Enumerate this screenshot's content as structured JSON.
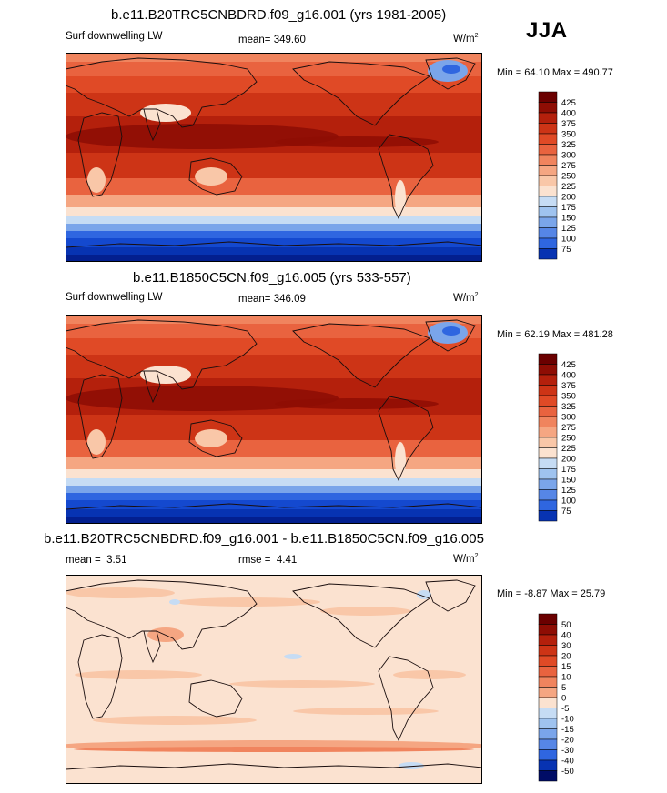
{
  "season": "JJA",
  "colors": {
    "warm": [
      "#fbe2d0",
      "#f9c7a8",
      "#f5a682",
      "#f0845e",
      "#e9633f",
      "#e04a26",
      "#cd3416",
      "#b4200c",
      "#8e0d04",
      "#6b0000"
    ],
    "cool": [
      "#c6dcf4",
      "#9fc3ef",
      "#7aa5ea",
      "#5686e6",
      "#2f66e0",
      "#1449cf",
      "#0733b2",
      "#031f8f",
      "#000c66"
    ],
    "land": "#1a0e0e"
  },
  "chart_data": [
    {
      "type": "heatmap",
      "title": "b.e11.B20TRC5CNBDRD.f09_g16.001 (yrs 1981-2005)",
      "variable": "Surf downwelling LW",
      "stat_label": "mean=",
      "stat_value": "349.60",
      "units": "W/m",
      "units_exp": "2",
      "min_label": "Min =",
      "min": "64.10",
      "max_label": "Max =",
      "max": "490.77",
      "levels": [
        "425",
        "400",
        "375",
        "350",
        "325",
        "300",
        "275",
        "250",
        "225",
        "200",
        "175",
        "150",
        "125",
        "100",
        "75"
      ],
      "level_values": [
        425,
        400,
        375,
        350,
        325,
        300,
        275,
        250,
        225,
        200,
        175,
        150,
        125,
        100,
        75
      ],
      "range": [
        64.1,
        490.77
      ],
      "colorbar_colors": [
        "#6b0000",
        "#8e0d04",
        "#b4200c",
        "#cd3416",
        "#e04a26",
        "#e9633f",
        "#f0845e",
        "#f5a682",
        "#f9c7a8",
        "#fbe2d0",
        "#c6dcf4",
        "#9fc3ef",
        "#7aa5ea",
        "#5686e6",
        "#2f66e0",
        "#0733b2"
      ],
      "field": "absolute"
    },
    {
      "type": "heatmap",
      "title": "b.e11.B1850C5CN.f09_g16.005 (yrs 533-557)",
      "variable": "Surf downwelling LW",
      "stat_label": "mean=",
      "stat_value": "346.09",
      "units": "W/m",
      "units_exp": "2",
      "min_label": "Min =",
      "min": "62.19",
      "max_label": "Max =",
      "max": "481.28",
      "levels": [
        "425",
        "400",
        "375",
        "350",
        "325",
        "300",
        "275",
        "250",
        "225",
        "200",
        "175",
        "150",
        "125",
        "100",
        "75"
      ],
      "level_values": [
        425,
        400,
        375,
        350,
        325,
        300,
        275,
        250,
        225,
        200,
        175,
        150,
        125,
        100,
        75
      ],
      "range": [
        62.19,
        481.28
      ],
      "colorbar_colors": [
        "#6b0000",
        "#8e0d04",
        "#b4200c",
        "#cd3416",
        "#e04a26",
        "#e9633f",
        "#f0845e",
        "#f5a682",
        "#f9c7a8",
        "#fbe2d0",
        "#c6dcf4",
        "#9fc3ef",
        "#7aa5ea",
        "#5686e6",
        "#2f66e0",
        "#0733b2"
      ],
      "field": "absolute"
    },
    {
      "type": "heatmap",
      "title": "b.e11.B20TRC5CNBDRD.f09_g16.001 - b.e11.B1850C5CN.f09_g16.005",
      "variable": "mean =",
      "stat_label": "rmse =",
      "mean_value": "3.51",
      "stat_value": "4.41",
      "units": "W/m",
      "units_exp": "2",
      "min_label": "Min =",
      "min": "-8.87",
      "max_label": "Max =",
      "max": "25.79",
      "levels": [
        "50",
        "40",
        "30",
        "20",
        "15",
        "10",
        "5",
        "0",
        "-5",
        "-10",
        "-15",
        "-20",
        "-30",
        "-40",
        "-50"
      ],
      "level_values": [
        50,
        40,
        30,
        20,
        15,
        10,
        5,
        0,
        -5,
        -10,
        -15,
        -20,
        -30,
        -40,
        -50
      ],
      "range": [
        -8.87,
        25.79
      ],
      "colorbar_colors": [
        "#6b0000",
        "#8e0d04",
        "#b4200c",
        "#cd3416",
        "#e04a26",
        "#e9633f",
        "#f0845e",
        "#f5a682",
        "#fbe2d0",
        "#c6dcf4",
        "#9fc3ef",
        "#7aa5ea",
        "#5686e6",
        "#2f66e0",
        "#0733b2",
        "#000c66"
      ],
      "field": "difference"
    }
  ]
}
